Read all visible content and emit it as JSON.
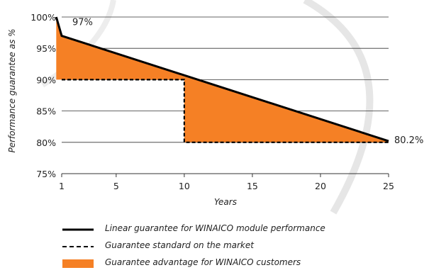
{
  "chart_data": {
    "type": "area",
    "xlabel": "Years",
    "ylabel": "Performance guarantee as %",
    "xlim": [
      1,
      25
    ],
    "ylim": [
      75,
      100
    ],
    "x_ticks": [
      1,
      5,
      10,
      15,
      20,
      25
    ],
    "y_ticks": [
      75,
      80,
      85,
      90,
      95,
      100
    ],
    "y_tick_labels": [
      "75%",
      "80%",
      "85%",
      "90%",
      "95%",
      "100%"
    ],
    "grid": "horizontal",
    "series": [
      {
        "name": "Linear guarantee for WINAICO module performance",
        "style": "solid",
        "color": "#000000",
        "x": [
          0.6,
          1,
          25
        ],
        "y": [
          100,
          97,
          80.2
        ]
      },
      {
        "name": "Guarantee standard on the market",
        "style": "dashed",
        "color": "#000000",
        "x": [
          1,
          10,
          10,
          25
        ],
        "y": [
          90,
          90,
          80,
          80
        ]
      }
    ],
    "fill": {
      "name": "Guarantee advantage for WINAICO customers",
      "color": "#f58025"
    },
    "annotations": [
      {
        "text": "97%",
        "x": 1,
        "y": 97
      },
      {
        "text": "80.2%",
        "x": 25,
        "y": 80.2
      }
    ]
  },
  "legend": [
    {
      "type": "solid",
      "label": "Linear guarantee for WINAICO module performance"
    },
    {
      "type": "dashed",
      "label": "Guarantee standard on the market"
    },
    {
      "type": "fill",
      "label": "Guarantee advantage for WINAICO customers"
    }
  ]
}
